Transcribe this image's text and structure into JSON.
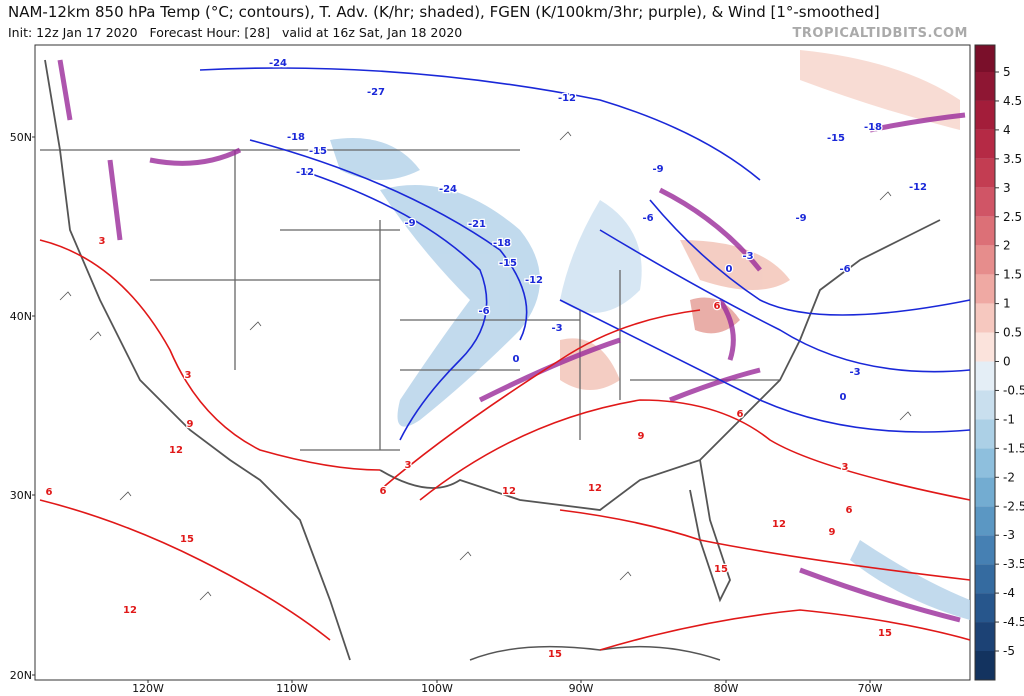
{
  "header": {
    "title": "NAM-12km 850 hPa Temp (°C; contours), T. Adv. (K/hr; shaded), FGEN (K/100km/3hr; purple), & Wind [1°-smoothed]",
    "init": "Init: 12z Jan 17 2020   Forecast Hour: [28]   valid at 16z Sat, Jan 18 2020",
    "credit": "TROPICALTIDBITS.COM"
  },
  "map": {
    "lat_labels": [
      "50N",
      "40N",
      "30N",
      "20N"
    ],
    "lon_labels": [
      "120W",
      "110W",
      "100W",
      "90W",
      "80W",
      "70W"
    ],
    "blue_contour_labels": [
      "-24",
      "-27",
      "-12",
      "-18",
      "-15",
      "-12",
      "-24",
      "-9",
      "-21",
      "-18",
      "-15",
      "-12",
      "-6",
      "-3",
      "0",
      "-9",
      "-6",
      "-3",
      "0",
      "-18",
      "-15",
      "-12",
      "-9",
      "-6",
      "-3",
      "0"
    ],
    "red_contour_labels": [
      "3",
      "3",
      "9",
      "12",
      "6",
      "15",
      "12",
      "3",
      "6",
      "12",
      "12",
      "9",
      "6",
      "6",
      "3",
      "6",
      "9",
      "12",
      "15",
      "15",
      "15"
    ]
  },
  "colorbar": {
    "ticks": [
      5,
      4.5,
      4,
      3.5,
      3,
      2.5,
      2,
      1.5,
      1,
      0.5,
      0,
      -0.5,
      -1,
      -1.5,
      -2,
      -2.5,
      -3,
      -3.5,
      -4,
      -4.5,
      -5
    ],
    "colors": [
      "#7a0f2a",
      "#8e1633",
      "#a31d3a",
      "#b52a45",
      "#c33d52",
      "#d05566",
      "#dc7077",
      "#e68d8c",
      "#efa9a3",
      "#f6c8bf",
      "#fbe3dc",
      "#e4eef6",
      "#c9dfee",
      "#acd0e6",
      "#8ebfdd",
      "#73acd1",
      "#5b97c3",
      "#4680b3",
      "#356ba0",
      "#27568c",
      "#1c4275",
      "#13335f"
    ]
  }
}
